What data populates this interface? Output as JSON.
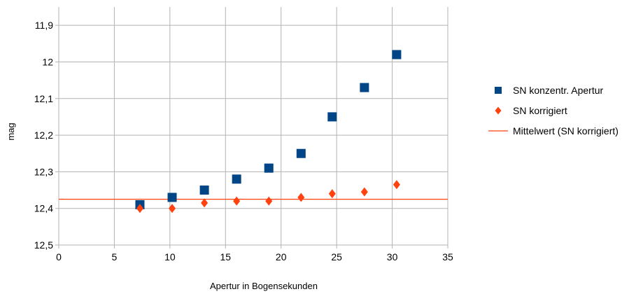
{
  "chart_data": {
    "type": "scatter",
    "title": "",
    "xlabel": "Apertur in Bogensekunden",
    "ylabel": "mag",
    "xlim": [
      0,
      35
    ],
    "ylim": [
      11.85,
      12.5
    ],
    "y_inverted": true,
    "x_ticks": [
      0,
      5,
      10,
      15,
      20,
      25,
      30,
      35
    ],
    "x_tick_labels": [
      "0",
      "5",
      "10",
      "15",
      "20",
      "25",
      "30",
      "35"
    ],
    "y_ticks": [
      11.9,
      12.0,
      12.1,
      12.2,
      12.3,
      12.4,
      12.5
    ],
    "y_tick_labels": [
      "11,9",
      "12",
      "12,1",
      "12,2",
      "12,3",
      "12,4",
      "12,5"
    ],
    "grid": true,
    "legend_position": "right",
    "series": [
      {
        "name": "SN konzentr. Apertur",
        "marker": "square",
        "color": "#004586",
        "x": [
          7.3,
          10.2,
          13.1,
          16.0,
          18.9,
          21.8,
          24.6,
          27.5,
          30.4
        ],
        "y": [
          12.39,
          12.37,
          12.35,
          12.32,
          12.29,
          12.25,
          12.15,
          12.07,
          11.98
        ]
      },
      {
        "name": "SN korrigiert",
        "marker": "diamond",
        "color": "#ff420e",
        "x": [
          7.3,
          10.2,
          13.1,
          16.0,
          18.9,
          21.8,
          24.6,
          27.5,
          30.4
        ],
        "y": [
          12.4,
          12.4,
          12.385,
          12.38,
          12.38,
          12.37,
          12.36,
          12.355,
          12.335
        ]
      },
      {
        "name": "Mittelwert (SN korrigiert)",
        "marker": "line",
        "color": "#ff420e",
        "y_constant": 12.375
      }
    ]
  }
}
